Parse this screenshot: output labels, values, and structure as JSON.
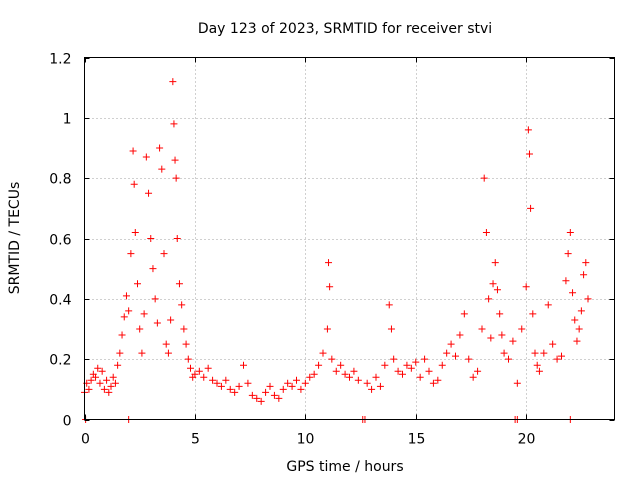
{
  "chart_data": {
    "type": "scatter",
    "title": "Day 123 of 2023, SRMTID for receiver stvi",
    "xlabel": "GPS time / hours",
    "ylabel": "SRMTID / TECUs",
    "xlim": [
      0,
      24
    ],
    "ylim": [
      0,
      1.2
    ],
    "xticks": [
      0,
      5,
      10,
      15,
      20
    ],
    "xtick_labels": [
      "0",
      "5",
      "10",
      "15",
      "20"
    ],
    "yticks": [
      0,
      0.2,
      0.4,
      0.6,
      0.8,
      1,
      1.2
    ],
    "ytick_labels": [
      "0",
      "0.2",
      "0.4",
      "0.6",
      "0.8",
      "1",
      "1.2"
    ],
    "grid": true,
    "legend": "none",
    "marker": "+",
    "color": "#ff0000",
    "series": [
      {
        "name": "SRMTID",
        "points": [
          [
            0.05,
            0.0
          ],
          [
            2.0,
            0.0
          ],
          [
            12.6,
            0.0
          ],
          [
            12.7,
            0.0
          ],
          [
            19.5,
            0.0
          ],
          [
            19.6,
            0.0
          ],
          [
            22.0,
            0.0
          ],
          [
            0.0,
            0.09
          ],
          [
            0.1,
            0.12
          ],
          [
            0.2,
            0.1
          ],
          [
            0.3,
            0.13
          ],
          [
            0.4,
            0.15
          ],
          [
            0.5,
            0.14
          ],
          [
            0.6,
            0.17
          ],
          [
            0.7,
            0.12
          ],
          [
            0.8,
            0.16
          ],
          [
            0.9,
            0.1
          ],
          [
            1.0,
            0.13
          ],
          [
            1.1,
            0.09
          ],
          [
            1.2,
            0.11
          ],
          [
            1.3,
            0.14
          ],
          [
            1.4,
            0.12
          ],
          [
            1.5,
            0.18
          ],
          [
            1.6,
            0.22
          ],
          [
            1.7,
            0.28
          ],
          [
            1.8,
            0.34
          ],
          [
            1.9,
            0.41
          ],
          [
            2.0,
            0.36
          ],
          [
            2.1,
            0.55
          ],
          [
            2.2,
            0.89
          ],
          [
            2.25,
            0.78
          ],
          [
            2.3,
            0.62
          ],
          [
            2.4,
            0.45
          ],
          [
            2.5,
            0.3
          ],
          [
            2.6,
            0.22
          ],
          [
            2.7,
            0.35
          ],
          [
            2.8,
            0.87
          ],
          [
            2.9,
            0.75
          ],
          [
            3.0,
            0.6
          ],
          [
            3.1,
            0.5
          ],
          [
            3.2,
            0.4
          ],
          [
            3.3,
            0.32
          ],
          [
            3.4,
            0.9
          ],
          [
            3.5,
            0.83
          ],
          [
            3.6,
            0.55
          ],
          [
            3.7,
            0.25
          ],
          [
            3.8,
            0.22
          ],
          [
            3.9,
            0.33
          ],
          [
            4.0,
            1.12
          ],
          [
            4.05,
            0.98
          ],
          [
            4.1,
            0.86
          ],
          [
            4.15,
            0.8
          ],
          [
            4.2,
            0.6
          ],
          [
            4.3,
            0.45
          ],
          [
            4.4,
            0.38
          ],
          [
            4.5,
            0.3
          ],
          [
            4.6,
            0.25
          ],
          [
            4.7,
            0.2
          ],
          [
            4.8,
            0.17
          ],
          [
            4.9,
            0.14
          ],
          [
            5.0,
            0.15
          ],
          [
            5.2,
            0.16
          ],
          [
            5.4,
            0.14
          ],
          [
            5.6,
            0.17
          ],
          [
            5.8,
            0.13
          ],
          [
            6.0,
            0.12
          ],
          [
            6.2,
            0.11
          ],
          [
            6.4,
            0.13
          ],
          [
            6.6,
            0.1
          ],
          [
            6.8,
            0.09
          ],
          [
            7.0,
            0.11
          ],
          [
            7.2,
            0.18
          ],
          [
            7.4,
            0.12
          ],
          [
            7.6,
            0.08
          ],
          [
            7.8,
            0.07
          ],
          [
            8.0,
            0.06
          ],
          [
            8.2,
            0.09
          ],
          [
            8.4,
            0.11
          ],
          [
            8.6,
            0.08
          ],
          [
            8.8,
            0.07
          ],
          [
            9.0,
            0.1
          ],
          [
            9.2,
            0.12
          ],
          [
            9.4,
            0.11
          ],
          [
            9.6,
            0.13
          ],
          [
            9.8,
            0.1
          ],
          [
            10.0,
            0.12
          ],
          [
            10.2,
            0.14
          ],
          [
            10.4,
            0.15
          ],
          [
            10.6,
            0.18
          ],
          [
            10.8,
            0.22
          ],
          [
            11.0,
            0.3
          ],
          [
            11.05,
            0.52
          ],
          [
            11.1,
            0.44
          ],
          [
            11.2,
            0.2
          ],
          [
            11.4,
            0.16
          ],
          [
            11.6,
            0.18
          ],
          [
            11.8,
            0.15
          ],
          [
            12.0,
            0.14
          ],
          [
            12.2,
            0.16
          ],
          [
            12.4,
            0.13
          ],
          [
            12.8,
            0.12
          ],
          [
            13.0,
            0.1
          ],
          [
            13.2,
            0.14
          ],
          [
            13.4,
            0.11
          ],
          [
            13.6,
            0.18
          ],
          [
            13.8,
            0.38
          ],
          [
            13.9,
            0.3
          ],
          [
            14.0,
            0.2
          ],
          [
            14.2,
            0.16
          ],
          [
            14.4,
            0.15
          ],
          [
            14.6,
            0.18
          ],
          [
            14.8,
            0.17
          ],
          [
            15.0,
            0.19
          ],
          [
            15.2,
            0.14
          ],
          [
            15.4,
            0.2
          ],
          [
            15.6,
            0.16
          ],
          [
            15.8,
            0.12
          ],
          [
            16.0,
            0.13
          ],
          [
            16.2,
            0.18
          ],
          [
            16.4,
            0.22
          ],
          [
            16.6,
            0.25
          ],
          [
            16.8,
            0.21
          ],
          [
            17.0,
            0.28
          ],
          [
            17.2,
            0.35
          ],
          [
            17.4,
            0.2
          ],
          [
            17.6,
            0.14
          ],
          [
            17.8,
            0.16
          ],
          [
            18.0,
            0.3
          ],
          [
            18.1,
            0.8
          ],
          [
            18.2,
            0.62
          ],
          [
            18.3,
            0.4
          ],
          [
            18.4,
            0.27
          ],
          [
            18.5,
            0.45
          ],
          [
            18.6,
            0.52
          ],
          [
            18.7,
            0.43
          ],
          [
            18.8,
            0.35
          ],
          [
            18.9,
            0.28
          ],
          [
            19.0,
            0.22
          ],
          [
            19.2,
            0.2
          ],
          [
            19.4,
            0.26
          ],
          [
            19.6,
            0.12
          ],
          [
            19.8,
            0.3
          ],
          [
            20.0,
            0.44
          ],
          [
            20.1,
            0.96
          ],
          [
            20.15,
            0.88
          ],
          [
            20.2,
            0.7
          ],
          [
            20.3,
            0.35
          ],
          [
            20.4,
            0.22
          ],
          [
            20.5,
            0.18
          ],
          [
            20.6,
            0.16
          ],
          [
            20.8,
            0.22
          ],
          [
            21.0,
            0.38
          ],
          [
            21.2,
            0.25
          ],
          [
            21.4,
            0.2
          ],
          [
            21.6,
            0.21
          ],
          [
            21.8,
            0.46
          ],
          [
            21.9,
            0.55
          ],
          [
            22.0,
            0.62
          ],
          [
            22.1,
            0.42
          ],
          [
            22.2,
            0.33
          ],
          [
            22.3,
            0.26
          ],
          [
            22.4,
            0.3
          ],
          [
            22.5,
            0.36
          ],
          [
            22.6,
            0.48
          ],
          [
            22.7,
            0.52
          ],
          [
            22.8,
            0.4
          ]
        ]
      }
    ]
  }
}
